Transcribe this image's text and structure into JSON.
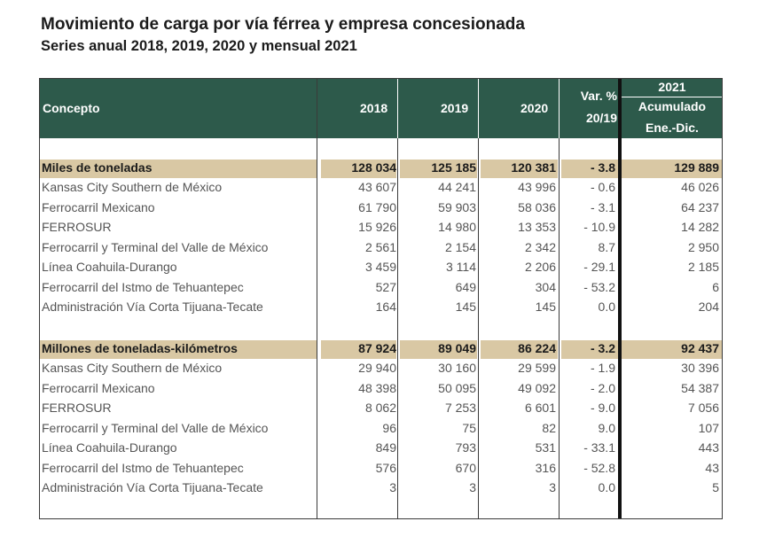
{
  "title": "Movimiento de carga por vía férrea y empresa concesionada",
  "subtitle": "Series anual 2018, 2019, 2020 y mensual 2021",
  "header": {
    "concepto": "Concepto",
    "y2018": "2018",
    "y2019": "2019",
    "y2020": "2020",
    "var_line1": "Var. %",
    "var_line2": "20/19",
    "y2021": "2021",
    "acum": "Acumulado",
    "period": "Ene.-Dic."
  },
  "sections": [
    {
      "label": "Miles de toneladas",
      "totals": [
        "128 034",
        "125 185",
        "120 381",
        "- 3.8",
        "129 889"
      ],
      "rows": [
        {
          "name": "Kansas City Southern de México",
          "v": [
            "43 607",
            "44 241",
            "43 996",
            "- 0.6",
            "46 026"
          ]
        },
        {
          "name": "Ferrocarril Mexicano",
          "v": [
            "61 790",
            "59 903",
            "58 036",
            "- 3.1",
            "64 237"
          ]
        },
        {
          "name": "FERROSUR",
          "v": [
            "15 926",
            "14 980",
            "13 353",
            "- 10.9",
            "14 282"
          ]
        },
        {
          "name": "Ferrocarril y Terminal del Valle de México",
          "v": [
            "2 561",
            "2 154",
            "2 342",
            "8.7",
            "2 950"
          ]
        },
        {
          "name": "Línea Coahuila-Durango",
          "v": [
            "3 459",
            "3 114",
            "2 206",
            "- 29.1",
            "2 185"
          ]
        },
        {
          "name": "Ferrocarril del Istmo de Tehuantepec",
          "v": [
            "527",
            "649",
            "304",
            "- 53.2",
            "6"
          ]
        },
        {
          "name": "Administración Vía Corta Tijuana-Tecate",
          "v": [
            "164",
            "145",
            "145",
            "0.0",
            "204"
          ]
        }
      ]
    },
    {
      "label": "Millones de toneladas-kilómetros",
      "totals": [
        "87 924",
        "89 049",
        "86 224",
        "- 3.2",
        "92 437"
      ],
      "rows": [
        {
          "name": "Kansas City Southern de México",
          "v": [
            "29 940",
            "30 160",
            "29 599",
            "- 1.9",
            "30 396"
          ]
        },
        {
          "name": "Ferrocarril Mexicano",
          "v": [
            "48 398",
            "50 095",
            "49 092",
            "- 2.0",
            "54 387"
          ]
        },
        {
          "name": "FERROSUR",
          "v": [
            "8 062",
            "7 253",
            "6 601",
            "- 9.0",
            "7 056"
          ]
        },
        {
          "name": "Ferrocarril y Terminal del Valle de México",
          "v": [
            "96",
            "75",
            "82",
            "9.0",
            "107"
          ]
        },
        {
          "name": "Línea Coahuila-Durango",
          "v": [
            "849",
            "793",
            "531",
            "- 33.1",
            "443"
          ]
        },
        {
          "name": "Ferrocarril del Istmo de Tehuantepec",
          "v": [
            "576",
            "670",
            "316",
            "- 52.8",
            "43"
          ]
        },
        {
          "name": "Administración Vía Corta Tijuana-Tecate",
          "v": [
            "3",
            "3",
            "3",
            "0.0",
            "5"
          ]
        }
      ]
    }
  ]
}
